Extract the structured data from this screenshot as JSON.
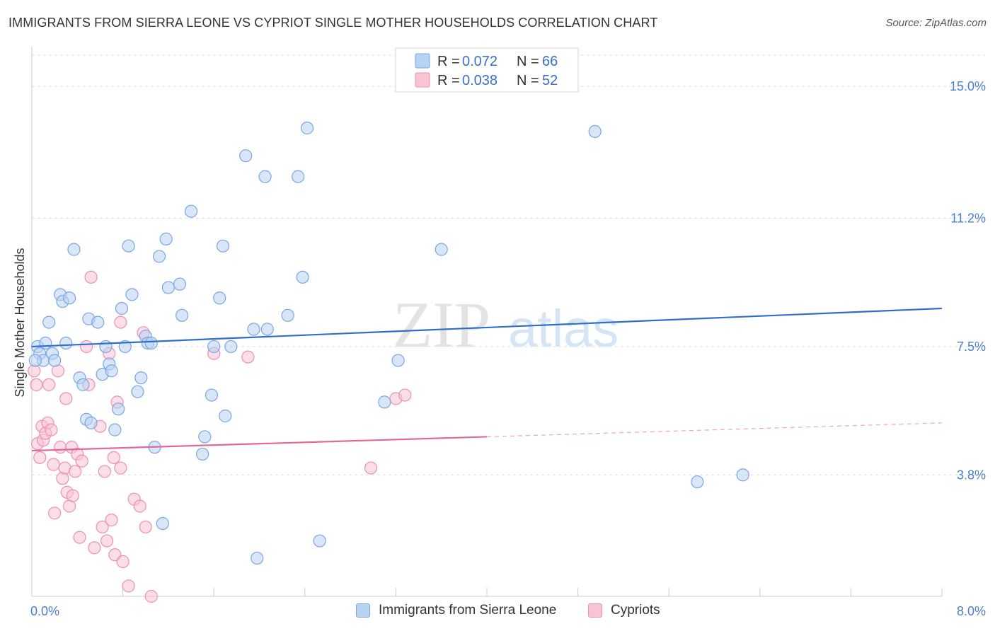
{
  "title": "IMMIGRANTS FROM SIERRA LEONE VS CYPRIOT SINGLE MOTHER HOUSEHOLDS CORRELATION CHART",
  "source": "Source: ZipAtlas.com",
  "watermark": {
    "zip": "ZIP",
    "atlas": "atlas"
  },
  "legend": {
    "rows": [
      {
        "r_label": "R =",
        "r_value": "0.072",
        "n_label": "N =",
        "n_value": "66"
      },
      {
        "r_label": "R =",
        "r_value": "0.038",
        "n_label": "N =",
        "n_value": "52"
      }
    ]
  },
  "bottom_legend": [
    "Immigrants from Sierra Leone",
    "Cypriots"
  ],
  "colors": {
    "blue_fill": "#b8d2f3",
    "blue_stroke": "#7aa6e0",
    "blue_line": "#2f6fca",
    "pink_fill": "#f8c3d4",
    "pink_stroke": "#ec8fb0",
    "pink_line": "#e0699a",
    "tick_text": "#4a7fd0",
    "grid": "#dddddd"
  },
  "chart_data": {
    "type": "scatter",
    "xlabel": "",
    "ylabel": "Single Mother Households",
    "xlim": [
      0,
      8
    ],
    "ylim": [
      0.3,
      15.9
    ],
    "x_tick_labels": [
      {
        "value": 0,
        "label": "0.0%"
      },
      {
        "value": 8,
        "label": "8.0%"
      }
    ],
    "y_tick_labels": [
      {
        "value": 3.8,
        "label": "3.8%"
      },
      {
        "value": 7.5,
        "label": "7.5%"
      },
      {
        "value": 11.2,
        "label": "11.2%"
      },
      {
        "value": 15.0,
        "label": "15.0%"
      }
    ],
    "series": [
      {
        "name": "Immigrants from Sierra Leone",
        "color": "blue",
        "trend": {
          "x": [
            0,
            8
          ],
          "y": [
            7.5,
            8.6
          ]
        },
        "points": [
          [
            0.05,
            7.5
          ],
          [
            0.07,
            7.3
          ],
          [
            0.1,
            7.1
          ],
          [
            0.12,
            7.6
          ],
          [
            0.15,
            8.2
          ],
          [
            0.18,
            7.3
          ],
          [
            0.2,
            7.1
          ],
          [
            0.25,
            9.0
          ],
          [
            0.27,
            8.8
          ],
          [
            0.3,
            7.6
          ],
          [
            0.33,
            8.9
          ],
          [
            0.37,
            10.3
          ],
          [
            0.42,
            6.6
          ],
          [
            0.45,
            6.4
          ],
          [
            0.48,
            5.4
          ],
          [
            0.5,
            8.3
          ],
          [
            0.52,
            5.3
          ],
          [
            0.58,
            8.2
          ],
          [
            0.62,
            6.7
          ],
          [
            0.65,
            7.5
          ],
          [
            0.68,
            7.0
          ],
          [
            0.7,
            6.8
          ],
          [
            0.73,
            5.1
          ],
          [
            0.76,
            5.7
          ],
          [
            0.79,
            8.6
          ],
          [
            0.82,
            7.5
          ],
          [
            0.85,
            10.4
          ],
          [
            0.88,
            9.0
          ],
          [
            0.93,
            6.2
          ],
          [
            0.96,
            6.6
          ],
          [
            1.0,
            7.8
          ],
          [
            1.02,
            7.6
          ],
          [
            1.05,
            7.6
          ],
          [
            1.08,
            4.6
          ],
          [
            1.12,
            10.1
          ],
          [
            1.15,
            2.4
          ],
          [
            1.18,
            10.6
          ],
          [
            1.2,
            9.2
          ],
          [
            1.3,
            9.3
          ],
          [
            1.32,
            8.4
          ],
          [
            1.4,
            11.4
          ],
          [
            1.5,
            4.4
          ],
          [
            1.52,
            4.9
          ],
          [
            1.58,
            6.1
          ],
          [
            1.6,
            7.5
          ],
          [
            1.65,
            8.9
          ],
          [
            1.68,
            10.4
          ],
          [
            1.7,
            5.5
          ],
          [
            1.75,
            7.5
          ],
          [
            1.88,
            13.0
          ],
          [
            1.95,
            8.0
          ],
          [
            1.98,
            1.4
          ],
          [
            2.05,
            12.4
          ],
          [
            2.07,
            8.0
          ],
          [
            2.25,
            8.4
          ],
          [
            2.34,
            12.4
          ],
          [
            2.38,
            9.5
          ],
          [
            2.42,
            13.8
          ],
          [
            2.53,
            1.9
          ],
          [
            3.1,
            5.9
          ],
          [
            3.22,
            7.1
          ],
          [
            3.6,
            10.3
          ],
          [
            4.95,
            13.7
          ],
          [
            5.85,
            3.6
          ],
          [
            6.25,
            3.8
          ],
          [
            0.03,
            7.1
          ]
        ]
      },
      {
        "name": "Cypriots",
        "color": "pink",
        "trend": {
          "x": [
            0,
            4
          ],
          "y": [
            4.5,
            4.9
          ]
        },
        "trend_dashed": {
          "x": [
            4,
            8
          ],
          "y": [
            4.9,
            5.3
          ]
        },
        "points": [
          [
            0.02,
            6.8
          ],
          [
            0.04,
            6.4
          ],
          [
            0.05,
            4.7
          ],
          [
            0.07,
            4.3
          ],
          [
            0.09,
            5.2
          ],
          [
            0.1,
            4.8
          ],
          [
            0.12,
            5.0
          ],
          [
            0.14,
            5.3
          ],
          [
            0.15,
            6.4
          ],
          [
            0.17,
            5.1
          ],
          [
            0.19,
            4.1
          ],
          [
            0.2,
            2.7
          ],
          [
            0.23,
            6.8
          ],
          [
            0.25,
            4.6
          ],
          [
            0.27,
            3.7
          ],
          [
            0.29,
            4.0
          ],
          [
            0.3,
            6.0
          ],
          [
            0.31,
            3.3
          ],
          [
            0.33,
            2.9
          ],
          [
            0.35,
            4.6
          ],
          [
            0.36,
            3.2
          ],
          [
            0.38,
            3.9
          ],
          [
            0.4,
            4.4
          ],
          [
            0.42,
            2.0
          ],
          [
            0.44,
            4.2
          ],
          [
            0.48,
            7.5
          ],
          [
            0.5,
            6.4
          ],
          [
            0.55,
            1.7
          ],
          [
            0.6,
            5.2
          ],
          [
            0.62,
            2.3
          ],
          [
            0.64,
            3.9
          ],
          [
            0.66,
            1.9
          ],
          [
            0.68,
            7.3
          ],
          [
            0.7,
            2.5
          ],
          [
            0.73,
            1.5
          ],
          [
            0.75,
            5.9
          ],
          [
            0.78,
            4.0
          ],
          [
            0.8,
            1.3
          ],
          [
            0.85,
            0.6
          ],
          [
            0.9,
            3.1
          ],
          [
            0.95,
            2.9
          ],
          [
            0.98,
            7.9
          ],
          [
            1.0,
            2.3
          ],
          [
            1.05,
            0.3
          ],
          [
            0.78,
            8.2
          ],
          [
            0.52,
            9.5
          ],
          [
            1.6,
            7.3
          ],
          [
            1.9,
            7.2
          ],
          [
            2.98,
            4.0
          ],
          [
            3.2,
            6.0
          ],
          [
            3.28,
            6.1
          ],
          [
            0.72,
            4.3
          ]
        ]
      }
    ]
  }
}
